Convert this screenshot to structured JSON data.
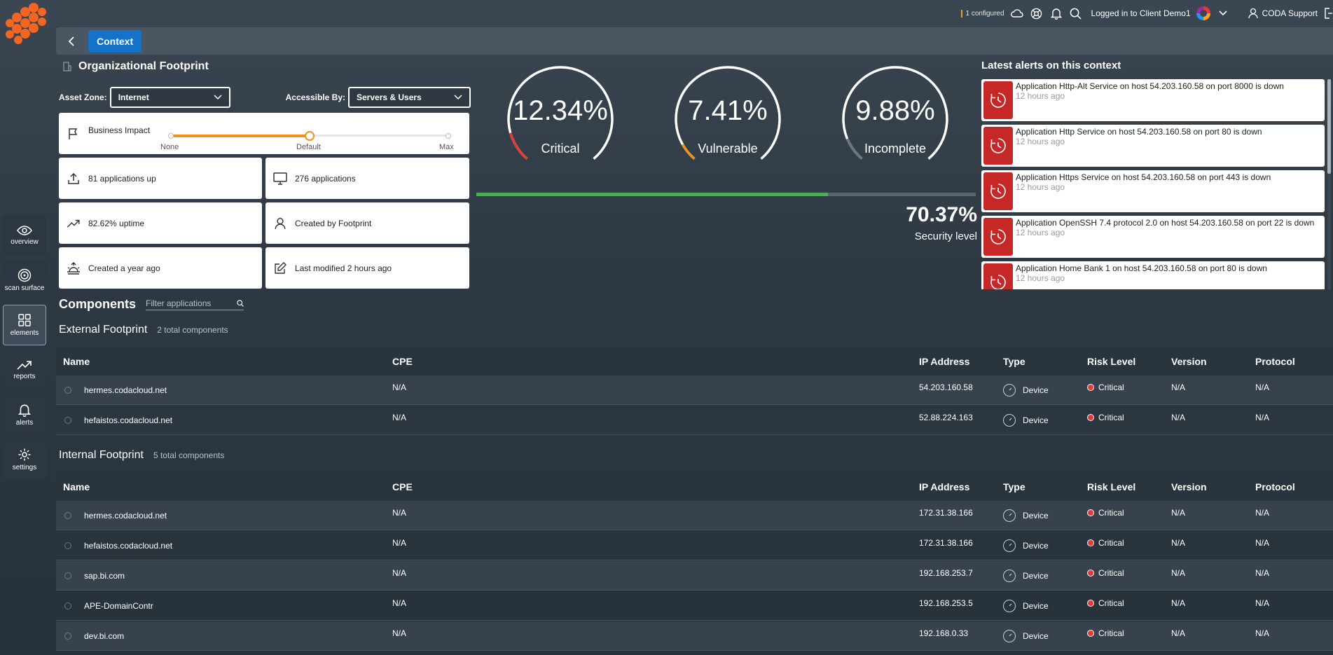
{
  "topbar": {
    "configured": "1 configured",
    "logged_in": "Logged in to Client Demo1",
    "user": "CODA Support"
  },
  "header": {
    "context_label": "Context"
  },
  "sidebar": {
    "items": [
      {
        "label": "overview",
        "icon": "eye-icon"
      },
      {
        "label": "scan surface",
        "icon": "target-icon"
      },
      {
        "label": "elements",
        "icon": "grid-icon"
      },
      {
        "label": "reports",
        "icon": "trending-icon"
      },
      {
        "label": "alerts",
        "icon": "bell-icon"
      },
      {
        "label": "settings",
        "icon": "gear-icon"
      }
    ]
  },
  "org": {
    "title": "Organizational Footprint",
    "asset_zone_label": "Asset Zone:",
    "asset_zone_value": "Internet",
    "accessible_by_label": "Accessible By:",
    "accessible_by_value": "Servers & Users",
    "business_impact": "Business Impact",
    "impact_levels": [
      "None",
      "Default",
      "Max"
    ],
    "impact_value_fraction": 0.5,
    "stats": {
      "apps_up": "81 applications up",
      "apps": "276 applications",
      "uptime": "82.62% uptime",
      "created_by": "Created by Footprint",
      "created": "Created a year ago",
      "modified": "Last modified 2 hours ago"
    }
  },
  "gauges": [
    {
      "value": "12.34%",
      "label": "Critical",
      "fraction": 0.1234,
      "color": "#e53935"
    },
    {
      "value": "7.41%",
      "label": "Vulnerable",
      "fraction": 0.0741,
      "color": "#f2921d"
    },
    {
      "value": "9.88%",
      "label": "Incomplete",
      "fraction": 0.0988,
      "color": "#6b7680"
    }
  ],
  "security": {
    "value": "70.37%",
    "label": "Security level",
    "fraction": 0.7037
  },
  "alerts": {
    "title": "Latest alerts on this context",
    "items": [
      {
        "text": "Application Http-Alt Service on host 54.203.160.58 on port 8000 is down",
        "time": "12 hours ago"
      },
      {
        "text": "Application Http Service on host 54.203.160.58 on port 80 is down",
        "time": "12 hours ago"
      },
      {
        "text": "Application Https Service on host 54.203.160.58 on port 443 is down",
        "time": "12 hours ago"
      },
      {
        "text": "Application OpenSSH 7.4 protocol 2.0 on host 54.203.160.58 on port 22 is down",
        "time": "12 hours ago"
      },
      {
        "text": "Application Home Bank 1 on host 54.203.160.58 on port 80 is down",
        "time": "12 hours ago"
      }
    ]
  },
  "components": {
    "title": "Components",
    "filter_placeholder": "Filter applications",
    "columns": [
      "Name",
      "CPE",
      "IP Address",
      "Type",
      "Risk Level",
      "Version",
      "Protocol"
    ],
    "external": {
      "title": "External Footprint",
      "count": "2 total components",
      "rows": [
        {
          "name": "hermes.codacloud.net",
          "cpe": "N/A",
          "ip": "54.203.160.58",
          "type": "Device",
          "risk": "Critical",
          "version": "N/A",
          "protocol": "N/A"
        },
        {
          "name": "hefaistos.codacloud.net",
          "cpe": "N/A",
          "ip": "52.88.224.163",
          "type": "Device",
          "risk": "Critical",
          "version": "N/A",
          "protocol": "N/A"
        }
      ]
    },
    "internal": {
      "title": "Internal Footprint",
      "count": "5 total components",
      "rows": [
        {
          "name": "hermes.codacloud.net",
          "cpe": "N/A",
          "ip": "172.31.38.166",
          "type": "Device",
          "risk": "Critical",
          "version": "N/A",
          "protocol": "N/A"
        },
        {
          "name": "hefaistos.codacloud.net",
          "cpe": "N/A",
          "ip": "172.31.38.166",
          "type": "Device",
          "risk": "Critical",
          "version": "N/A",
          "protocol": "N/A"
        },
        {
          "name": "sap.bi.com",
          "cpe": "N/A",
          "ip": "192.168.253.7",
          "type": "Device",
          "risk": "Critical",
          "version": "N/A",
          "protocol": "N/A"
        },
        {
          "name": "APE-DomainContr",
          "cpe": "N/A",
          "ip": "192.168.253.5",
          "type": "Device",
          "risk": "Critical",
          "version": "N/A",
          "protocol": "N/A"
        },
        {
          "name": "dev.bi.com",
          "cpe": "N/A",
          "ip": "192.168.0.33",
          "type": "Device",
          "risk": "Critical",
          "version": "N/A",
          "protocol": "N/A"
        }
      ]
    }
  }
}
